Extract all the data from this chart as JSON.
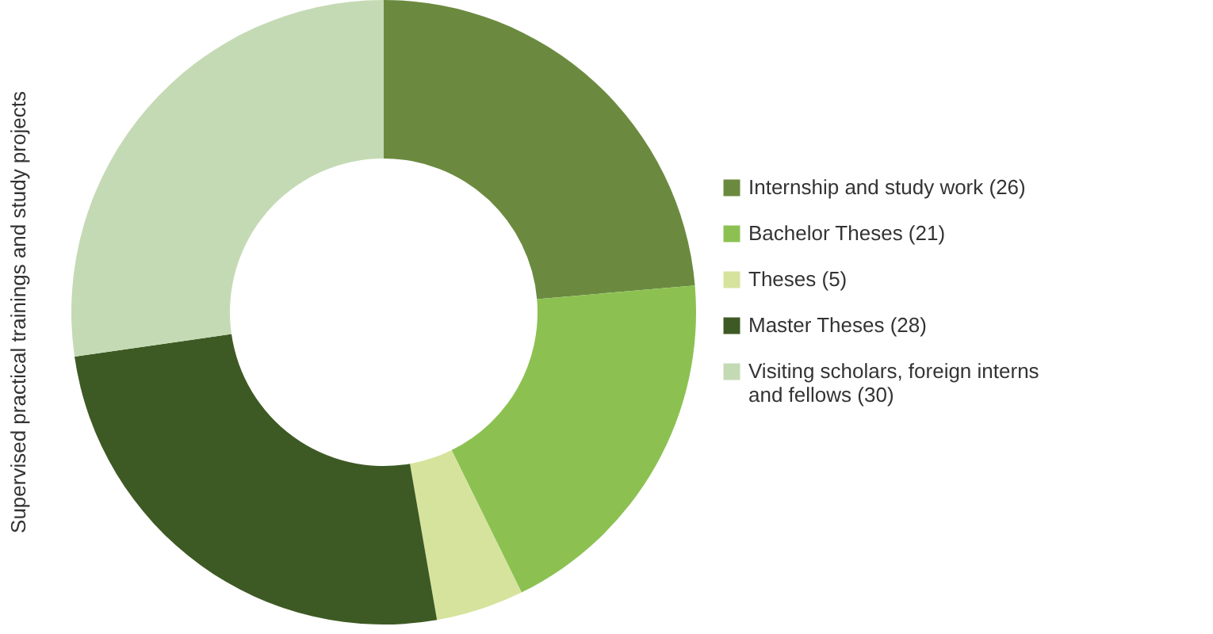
{
  "chart_data": {
    "type": "donut",
    "ylabel": "Supervised practical trainings and study projects",
    "categories": [
      "Internship and study work (26)",
      "Bachelor Theses (21)",
      "Theses (5)",
      "Master Theses (28)",
      "Visiting scholars, foreign interns and fellows (30)"
    ],
    "values": [
      26,
      21,
      5,
      28,
      30
    ],
    "colors": [
      "#6b8a3f",
      "#8cc152",
      "#d6e39d",
      "#3e5a24",
      "#c4dab4"
    ],
    "legend": "right"
  }
}
